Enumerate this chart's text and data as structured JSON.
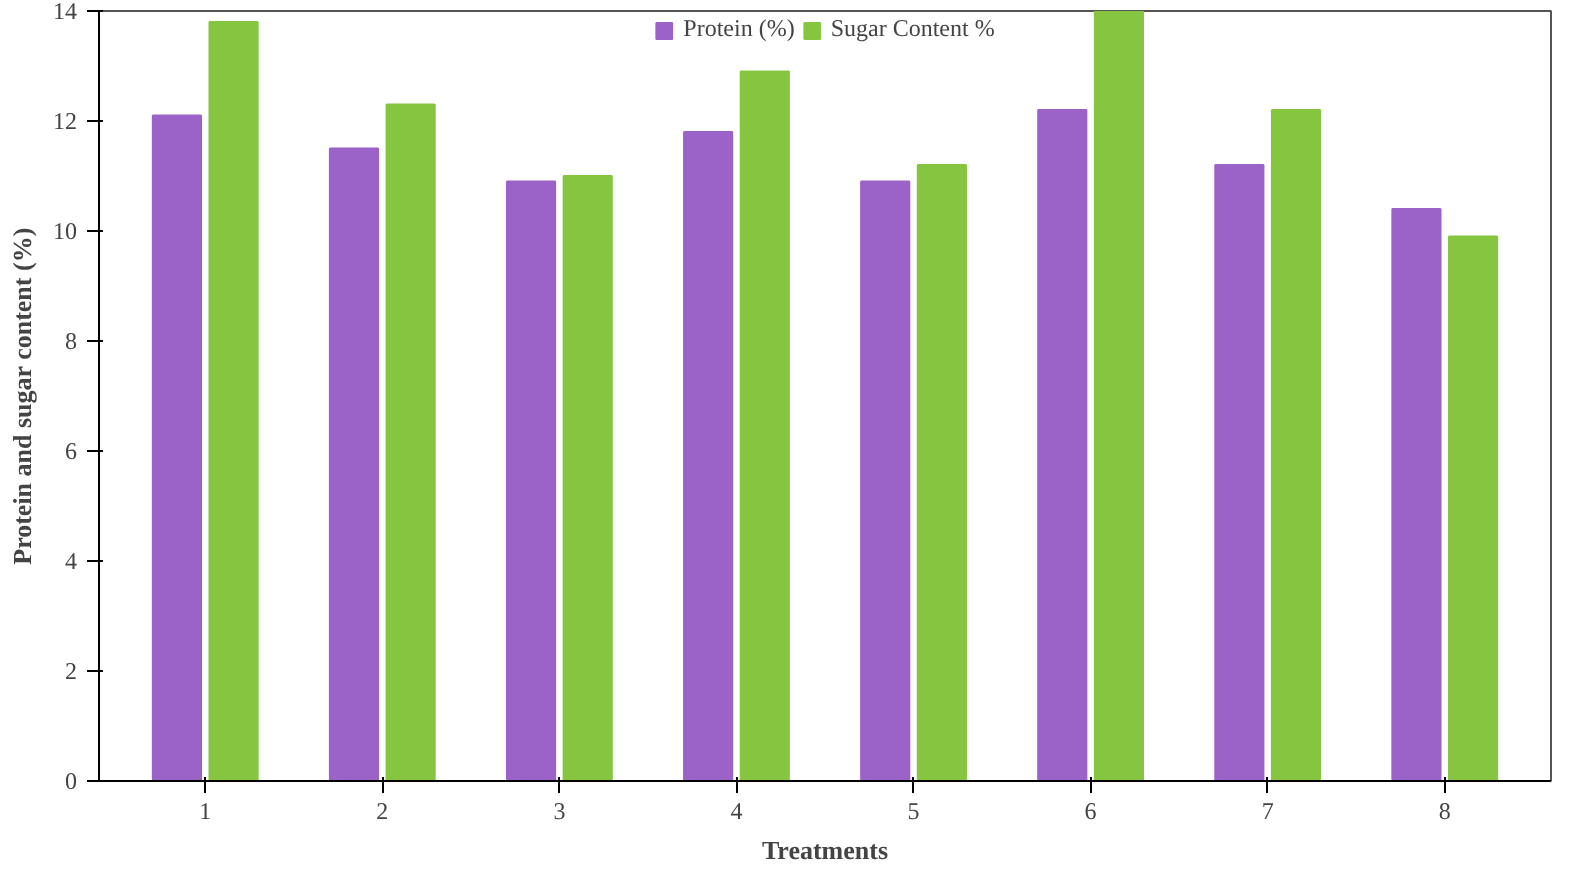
{
  "chart_data": {
    "type": "bar",
    "xlabel": "Treatments",
    "ylabel": "Protein and sugar content (%)",
    "categories": [
      "1",
      "2",
      "3",
      "4",
      "5",
      "6",
      "7",
      "8"
    ],
    "series": [
      {
        "name": "Protein (%)",
        "color": "#9b62c8",
        "values": [
          12.1,
          11.5,
          10.9,
          11.8,
          10.9,
          12.2,
          11.2,
          10.4
        ]
      },
      {
        "name": "Sugar Content %",
        "color": "#86c540",
        "values": [
          13.8,
          12.3,
          11.0,
          12.9,
          11.2,
          14.0,
          12.2,
          9.9
        ]
      }
    ],
    "ylim": [
      0,
      14
    ],
    "yticks": [
      0,
      2,
      4,
      6,
      8,
      10,
      12,
      14
    ],
    "grid": false,
    "legend": "top"
  }
}
